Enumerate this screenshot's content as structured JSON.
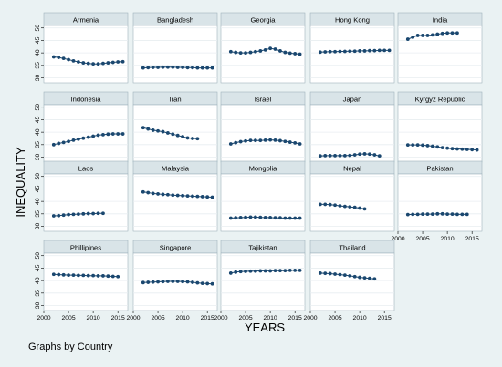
{
  "colors": {
    "background": "#eaf2f3",
    "panel_title_bg": "#d9e4e8",
    "marker": "#1a476f",
    "grid": "#e8eef1"
  },
  "chart_data": {
    "type": "scatter",
    "connected": true,
    "xlabel": "YEARS",
    "ylabel": "INEQUALITY",
    "note": "Graphs by Country",
    "xlim": [
      2000,
      2017
    ],
    "ylim": [
      28,
      51
    ],
    "xticks": [
      2000,
      2005,
      2010,
      2015
    ],
    "yticks": [
      30,
      35,
      40,
      45,
      50
    ],
    "grid": true,
    "panels": [
      {
        "name": "Armenia",
        "x": [
          2002,
          2003,
          2004,
          2005,
          2006,
          2007,
          2008,
          2009,
          2010,
          2011,
          2012,
          2013,
          2014,
          2015,
          2016
        ],
        "y": [
          38.4,
          38.2,
          37.8,
          37.3,
          36.8,
          36.4,
          36.0,
          35.8,
          35.6,
          35.6,
          35.8,
          36.0,
          36.2,
          36.4,
          36.5
        ]
      },
      {
        "name": "Bangladesh",
        "x": [
          2002,
          2003,
          2004,
          2005,
          2006,
          2007,
          2008,
          2009,
          2010,
          2011,
          2012,
          2013,
          2014,
          2015,
          2016
        ],
        "y": [
          34.0,
          34.1,
          34.2,
          34.2,
          34.3,
          34.3,
          34.3,
          34.2,
          34.2,
          34.1,
          34.1,
          34.0,
          34.0,
          34.0,
          34.0
        ]
      },
      {
        "name": "Georgia",
        "x": [
          2002,
          2003,
          2004,
          2005,
          2006,
          2007,
          2008,
          2009,
          2010,
          2011,
          2012,
          2013,
          2014,
          2015,
          2016
        ],
        "y": [
          40.5,
          40.2,
          40.0,
          40.0,
          40.2,
          40.5,
          40.8,
          41.2,
          41.8,
          41.5,
          40.8,
          40.2,
          39.9,
          39.7,
          39.5
        ]
      },
      {
        "name": "Hong Kong",
        "x": [
          2002,
          2003,
          2004,
          2005,
          2006,
          2007,
          2008,
          2009,
          2010,
          2011,
          2012,
          2013,
          2014,
          2015,
          2016
        ],
        "y": [
          40.3,
          40.4,
          40.5,
          40.5,
          40.6,
          40.6,
          40.7,
          40.7,
          40.8,
          40.8,
          40.9,
          40.9,
          41.0,
          41.0,
          41.0
        ]
      },
      {
        "name": "India",
        "x": [
          2002,
          2003,
          2004,
          2005,
          2006,
          2007,
          2008,
          2009,
          2010,
          2011,
          2012
        ],
        "y": [
          45.5,
          46.3,
          47.0,
          47.0,
          47.0,
          47.2,
          47.5,
          47.8,
          48.0,
          48.0,
          48.0
        ]
      },
      {
        "name": "Indonesia",
        "x": [
          2002,
          2003,
          2004,
          2005,
          2006,
          2007,
          2008,
          2009,
          2010,
          2011,
          2012,
          2013,
          2014,
          2015,
          2016
        ],
        "y": [
          35.0,
          35.5,
          35.9,
          36.3,
          36.8,
          37.2,
          37.6,
          38.0,
          38.4,
          38.8,
          39.0,
          39.2,
          39.3,
          39.3,
          39.3
        ]
      },
      {
        "name": "Iran",
        "x": [
          2002,
          2003,
          2004,
          2005,
          2006,
          2007,
          2008,
          2009,
          2010,
          2011,
          2012,
          2013
        ],
        "y": [
          41.8,
          41.3,
          40.8,
          40.5,
          40.2,
          39.7,
          39.2,
          38.7,
          38.2,
          37.7,
          37.5,
          37.4
        ]
      },
      {
        "name": "Israel",
        "x": [
          2002,
          2003,
          2004,
          2005,
          2006,
          2007,
          2008,
          2009,
          2010,
          2011,
          2012,
          2013,
          2014,
          2015,
          2016
        ],
        "y": [
          35.3,
          35.8,
          36.2,
          36.5,
          36.7,
          36.7,
          36.7,
          36.8,
          36.9,
          36.8,
          36.6,
          36.3,
          36.0,
          35.7,
          35.3
        ]
      },
      {
        "name": "Japan",
        "x": [
          2002,
          2003,
          2004,
          2005,
          2006,
          2007,
          2008,
          2009,
          2010,
          2011,
          2012,
          2013,
          2014
        ],
        "y": [
          30.5,
          30.6,
          30.6,
          30.6,
          30.6,
          30.6,
          30.7,
          30.9,
          31.2,
          31.3,
          31.2,
          30.9,
          30.5
        ]
      },
      {
        "name": "Kyrgyz Republic",
        "x": [
          2002,
          2003,
          2004,
          2005,
          2006,
          2007,
          2008,
          2009,
          2010,
          2011,
          2012,
          2013,
          2014,
          2015,
          2016
        ],
        "y": [
          34.9,
          34.9,
          34.9,
          34.8,
          34.6,
          34.4,
          34.1,
          33.8,
          33.6,
          33.4,
          33.3,
          33.2,
          33.1,
          33.0,
          32.9
        ]
      },
      {
        "name": "Laos",
        "x": [
          2002,
          2003,
          2004,
          2005,
          2006,
          2007,
          2008,
          2009,
          2010,
          2011,
          2012
        ],
        "y": [
          34.2,
          34.3,
          34.5,
          34.7,
          34.8,
          34.9,
          35.0,
          35.1,
          35.1,
          35.2,
          35.2
        ]
      },
      {
        "name": "Malaysia",
        "x": [
          2002,
          2003,
          2004,
          2005,
          2006,
          2007,
          2008,
          2009,
          2010,
          2011,
          2012,
          2013,
          2014,
          2015,
          2016
        ],
        "y": [
          43.8,
          43.5,
          43.2,
          43.0,
          42.8,
          42.7,
          42.5,
          42.4,
          42.3,
          42.2,
          42.1,
          42.0,
          41.9,
          41.8,
          41.7
        ]
      },
      {
        "name": "Mongolia",
        "x": [
          2002,
          2003,
          2004,
          2005,
          2006,
          2007,
          2008,
          2009,
          2010,
          2011,
          2012,
          2013,
          2014,
          2015,
          2016
        ],
        "y": [
          33.3,
          33.4,
          33.5,
          33.6,
          33.7,
          33.7,
          33.6,
          33.5,
          33.5,
          33.4,
          33.4,
          33.3,
          33.3,
          33.3,
          33.3
        ]
      },
      {
        "name": "Nepal",
        "x": [
          2002,
          2003,
          2004,
          2005,
          2006,
          2007,
          2008,
          2009,
          2010,
          2011
        ],
        "y": [
          38.8,
          38.8,
          38.7,
          38.5,
          38.2,
          38.0,
          37.8,
          37.6,
          37.3,
          37.0
        ]
      },
      {
        "name": "Pakistan",
        "x": [
          2002,
          2003,
          2004,
          2005,
          2006,
          2007,
          2008,
          2009,
          2010,
          2011,
          2012,
          2013,
          2014
        ],
        "y": [
          34.7,
          34.8,
          34.8,
          34.9,
          34.9,
          34.9,
          35.0,
          35.0,
          34.9,
          34.9,
          34.8,
          34.8,
          34.8
        ]
      },
      {
        "name": "Phillipines",
        "x": [
          2002,
          2003,
          2004,
          2005,
          2006,
          2007,
          2008,
          2009,
          2010,
          2011,
          2012,
          2013,
          2014,
          2015
        ],
        "y": [
          42.5,
          42.4,
          42.3,
          42.2,
          42.2,
          42.1,
          42.1,
          42.0,
          42.0,
          41.9,
          41.9,
          41.8,
          41.7,
          41.6
        ]
      },
      {
        "name": "Singapore",
        "x": [
          2002,
          2003,
          2004,
          2005,
          2006,
          2007,
          2008,
          2009,
          2010,
          2011,
          2012,
          2013,
          2014,
          2015,
          2016
        ],
        "y": [
          39.2,
          39.3,
          39.4,
          39.5,
          39.6,
          39.7,
          39.7,
          39.7,
          39.6,
          39.5,
          39.3,
          39.1,
          38.9,
          38.8,
          38.7
        ]
      },
      {
        "name": "Tajikistan",
        "x": [
          2002,
          2003,
          2004,
          2005,
          2006,
          2007,
          2008,
          2009,
          2010,
          2011,
          2012,
          2013,
          2014,
          2015,
          2016
        ],
        "y": [
          43.0,
          43.4,
          43.6,
          43.7,
          43.8,
          43.8,
          43.9,
          43.9,
          43.9,
          44.0,
          44.0,
          44.0,
          44.1,
          44.1,
          44.1
        ]
      },
      {
        "name": "Thailand",
        "x": [
          2002,
          2003,
          2004,
          2005,
          2006,
          2007,
          2008,
          2009,
          2010,
          2011,
          2012,
          2013
        ],
        "y": [
          43.0,
          42.9,
          42.8,
          42.6,
          42.4,
          42.2,
          41.9,
          41.6,
          41.3,
          41.1,
          40.9,
          40.7
        ]
      }
    ]
  }
}
